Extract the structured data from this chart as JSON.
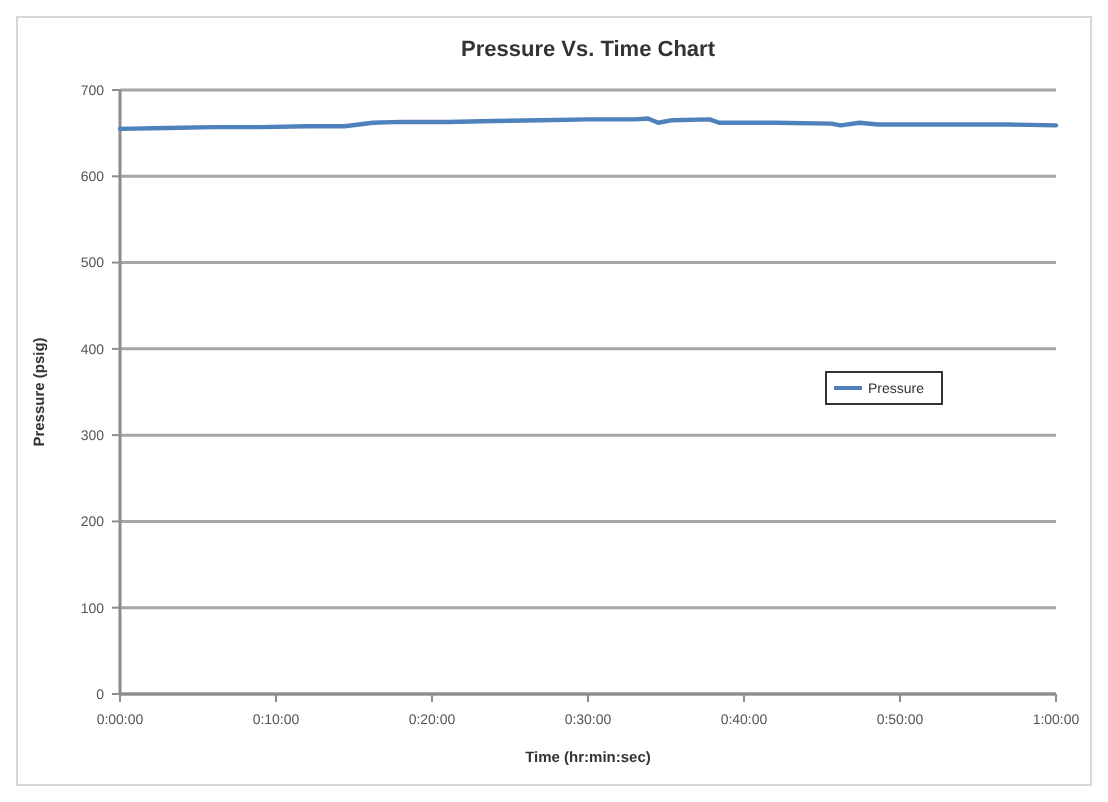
{
  "chart_data": {
    "type": "line",
    "title": "Pressure Vs. Time Chart",
    "xlabel": "Time (hr:min:sec)",
    "ylabel": "Pressure (psig)",
    "xlim": [
      0,
      1
    ],
    "xticks": [
      {
        "value": 0,
        "label": "0:00:00"
      },
      {
        "value": 0.16667,
        "label": "0:10:00"
      },
      {
        "value": 0.33333,
        "label": "0:20:00"
      },
      {
        "value": 0.5,
        "label": "0:30:00"
      },
      {
        "value": 0.66667,
        "label": "0:40:00"
      },
      {
        "value": 0.83333,
        "label": "0:50:00"
      },
      {
        "value": 1,
        "label": "1:00:00"
      }
    ],
    "ylim": [
      0,
      700
    ],
    "yticks": [
      0,
      100,
      200,
      300,
      400,
      500,
      600,
      700
    ],
    "grid": "y",
    "legend": "right",
    "marker": "none",
    "line_style": "solid",
    "x": [
      0,
      0.05,
      0.1,
      0.15,
      0.2,
      0.24,
      0.27,
      0.3,
      0.35,
      0.4,
      0.45,
      0.5,
      0.55,
      0.564,
      0.575,
      0.59,
      0.63,
      0.64,
      0.7,
      0.76,
      0.77,
      0.79,
      0.81,
      0.85,
      0.9,
      0.95,
      1
    ],
    "series": [
      {
        "name": "Pressure",
        "color": "#4f81bd",
        "values": [
          655,
          656,
          657,
          657,
          658,
          658,
          662,
          663,
          663,
          664,
          665,
          666,
          666,
          667,
          662,
          665,
          666,
          662,
          662,
          661,
          659,
          662,
          660,
          660,
          660,
          660,
          659
        ]
      }
    ]
  }
}
